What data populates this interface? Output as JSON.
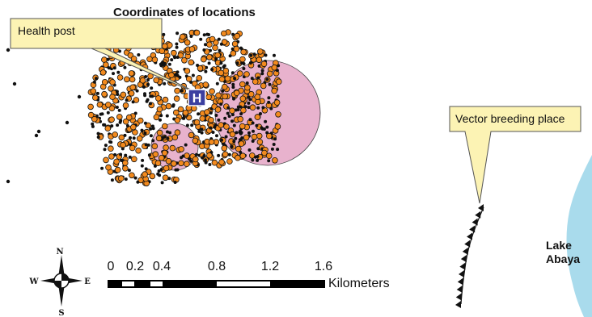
{
  "title": "Coordinates of locations",
  "callouts": {
    "health_post": "Health post",
    "vector_breeding": "Vector breeding place"
  },
  "health_post_symbol": "H",
  "lake": {
    "line1": "Lake",
    "line2": "Abaya",
    "color": "#a9dbec"
  },
  "scale_bar": {
    "ticks": [
      "0",
      "0.2",
      "0.4",
      "0.8",
      "1.2",
      "1.6"
    ],
    "unit": "Kilometers"
  },
  "compass": {
    "n": "N",
    "s": "S",
    "e": "E",
    "w": "W"
  },
  "colors": {
    "buffer_fill": "#e8b2cd",
    "point_fill": "#f28a1e",
    "callout_fill": "#fcf3b4",
    "health_post": "#3b3fa0"
  }
}
